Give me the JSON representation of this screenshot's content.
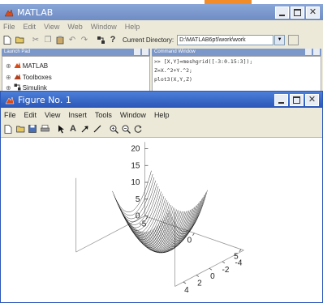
{
  "matlab": {
    "title": "MATLAB",
    "menu": [
      "File",
      "Edit",
      "View",
      "Web",
      "Window",
      "Help"
    ],
    "current_dir_label": "Current Directory:",
    "current_dir_value": "D:\\MATLAB6p5\\work\\work",
    "launch_pad": {
      "title": "Launch Pad",
      "items": [
        "MATLAB",
        "Toolboxes",
        "Simulink"
      ]
    },
    "command_window": {
      "title": "Command Window",
      "lines": [
        ">> [X,Y]=meshgrid([-3:0.15:3]);",
        "Z=X.^2+Y.^2;",
        "plot3(X,Y,Z)"
      ]
    }
  },
  "figure": {
    "title": "Figure No. 1",
    "menu": [
      "File",
      "Edit",
      "View",
      "Insert",
      "Tools",
      "Window",
      "Help"
    ]
  },
  "chart_data": {
    "type": "line",
    "function": "Z = X.^2 + Y.^2",
    "x_range": [
      -3,
      3
    ],
    "y_range": [
      -3,
      3
    ],
    "step": 0.15,
    "z_ticks": [
      "20",
      "15",
      "10",
      "5",
      "0"
    ],
    "x_ticks": [
      "-5",
      "0",
      "5"
    ],
    "y_ticks": [
      "-4",
      "-2",
      "0",
      "2",
      "4"
    ],
    "line_color": "#000000"
  },
  "colors": {
    "title_active": "#2a56b8",
    "title_inactive": "#6f8cc4",
    "chrome": "#ece9d8",
    "axes_bg": "#ffffff",
    "accent_orange": "#f28c28"
  }
}
